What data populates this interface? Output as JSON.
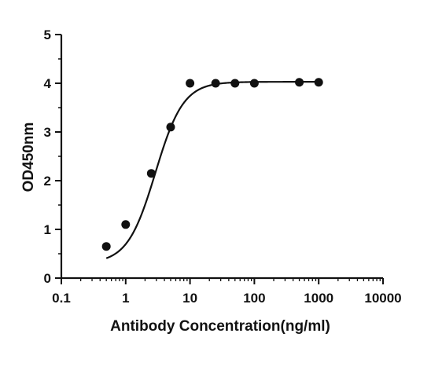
{
  "chart_data": {
    "type": "scatter",
    "title": "",
    "xlabel": "Antibody Concentration(ng/ml)",
    "ylabel": "OD450nm",
    "x_scale": "log",
    "xlim": [
      0.1,
      10000
    ],
    "ylim": [
      0,
      5
    ],
    "x_ticks": [
      0.1,
      1,
      10,
      100,
      1000,
      10000
    ],
    "x_tick_labels": [
      "0.1",
      "1",
      "10",
      "100",
      "1000",
      "10000"
    ],
    "y_ticks": [
      0,
      1,
      2,
      3,
      4,
      5
    ],
    "y_tick_labels": [
      "0",
      "1",
      "2",
      "3",
      "4",
      "5"
    ],
    "grid": false,
    "legend": "none",
    "series": [
      {
        "x": [
          0.5,
          1,
          2.5,
          5,
          10,
          25,
          50,
          100,
          500,
          1000
        ],
        "y": [
          0.65,
          1.1,
          2.15,
          3.1,
          4.0,
          4.0,
          4.0,
          4.0,
          4.02,
          4.02
        ],
        "marker": "filled-circle",
        "color": "#111111"
      }
    ],
    "fit_curve": {
      "model": "four-parameter logistic",
      "bottom": 0.3,
      "top": 4.03,
      "ec50": 2.9,
      "hill": 2.0,
      "x_range": [
        0.5,
        1000
      ],
      "color": "#111111"
    }
  }
}
